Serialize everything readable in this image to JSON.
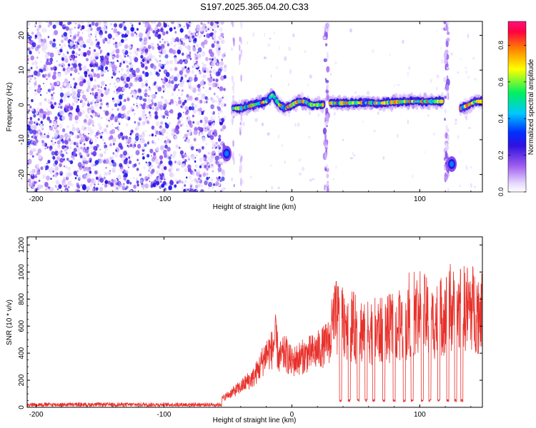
{
  "title": "S197.2025.365.04.20.C33",
  "chart_data": [
    {
      "type": "heatmap",
      "name": "spectrogram",
      "xlabel": "Height of straight line (km)",
      "ylabel": "Frequency (Hz)",
      "xlim": [
        -207,
        149
      ],
      "ylim": [
        -25,
        24
      ],
      "xticks": [
        -200,
        -100,
        0,
        100
      ],
      "xtick_labels": [
        "-200",
        "-100",
        "0",
        "100"
      ],
      "yticks": [
        -20,
        -10,
        0,
        10,
        20
      ],
      "ytick_labels": [
        "-20",
        "-10",
        "0",
        "10",
        "20"
      ],
      "colorbar": {
        "label": "Normalized spectral amplitude",
        "range": [
          0,
          0.93
        ],
        "ticks": [
          0,
          0.2,
          0.4,
          0.6,
          0.8
        ],
        "tick_labels": [
          "0.0",
          "0.2",
          "0.4",
          "0.6",
          "0.8"
        ],
        "colors": [
          "#ffffff",
          "#e6d8ff",
          "#a060f0",
          "#3010e0",
          "#0030ff",
          "#00c8ff",
          "#00f060",
          "#ffff00",
          "#ff8000",
          "#ff0040"
        ]
      },
      "features": [
        {
          "kind": "noise",
          "x_range": [
            -207,
            -52
          ],
          "freq_range": [
            -25,
            24
          ],
          "amplitude": 0.25
        },
        {
          "kind": "trace",
          "x": [
            -46,
            -40,
            -30,
            -20,
            -15,
            -10,
            -5,
            0,
            5,
            10,
            15,
            20,
            25
          ],
          "freq": [
            -1,
            -1,
            0,
            1,
            3,
            0,
            -1,
            0,
            1,
            1,
            0,
            0,
            0
          ]
        },
        {
          "kind": "trace",
          "x": [
            30,
            40,
            50,
            60,
            70,
            80,
            90,
            100,
            110,
            118
          ],
          "freq": [
            0.5,
            0.5,
            0.6,
            0.6,
            0.5,
            0.8,
            1,
            1,
            1,
            1
          ]
        },
        {
          "kind": "trace",
          "x": [
            132,
            138,
            144,
            149
          ],
          "freq": [
            -1,
            0,
            1,
            1
          ]
        },
        {
          "kind": "blob",
          "x": -51,
          "freq": -14
        },
        {
          "kind": "blob",
          "x": 125,
          "freq": -17
        },
        {
          "kind": "stripe",
          "x": 27
        },
        {
          "kind": "stripe",
          "x": 121
        }
      ]
    },
    {
      "type": "line",
      "name": "snr",
      "xlabel": "Height of straight line (km)",
      "ylabel": "SNR (10 * v/v)",
      "xlim": [
        -207,
        149
      ],
      "ylim": [
        0,
        1260
      ],
      "xticks": [
        -200,
        -100,
        0,
        100
      ],
      "xtick_labels": [
        "-200",
        "-100",
        "0",
        "100"
      ],
      "yticks": [
        0,
        200,
        400,
        600,
        800,
        1000,
        1200
      ],
      "ytick_labels": [
        "0",
        "200",
        "400",
        "600",
        "800",
        "1000",
        "1200"
      ],
      "color": "#e8302a",
      "x": [
        -207,
        -150,
        -100,
        -70,
        -60,
        -50,
        -45,
        -40,
        -35,
        -30,
        -25,
        -20,
        -15,
        -13,
        -10,
        -5,
        0,
        5,
        10,
        15,
        20,
        25,
        30,
        33,
        40,
        50,
        60,
        70,
        80,
        90,
        100,
        110,
        120,
        130,
        140,
        149
      ],
      "y": [
        20,
        20,
        20,
        20,
        30,
        90,
        120,
        150,
        190,
        220,
        300,
        400,
        430,
        520,
        360,
        400,
        330,
        360,
        380,
        400,
        420,
        450,
        500,
        650,
        650,
        580,
        570,
        560,
        590,
        610,
        720,
        620,
        700,
        720,
        740,
        700
      ],
      "dropouts_x": [
        38,
        45,
        52,
        58,
        64,
        72,
        80,
        88,
        94,
        102,
        108,
        115,
        122,
        128,
        133
      ]
    }
  ]
}
